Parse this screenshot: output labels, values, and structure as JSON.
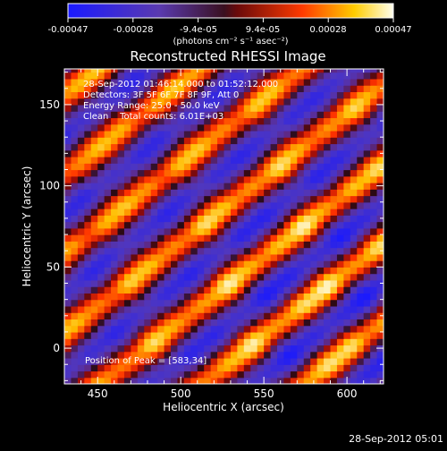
{
  "colorbar": {
    "ticks": [
      "-0.00047",
      "-0.00028",
      "-9.4e-05",
      "9.4e-05",
      "0.00028",
      "0.00047"
    ],
    "units": "(photons cm⁻² s⁻¹ asec⁻²)"
  },
  "chart_data": {
    "type": "heatmap",
    "title": "Reconstructed RHESSI Image",
    "xlabel": "Heliocentric X (arcsec)",
    "ylabel": "Heliocentric Y (arcsec)",
    "xlim": [
      430,
      622
    ],
    "ylim": [
      -22,
      172
    ],
    "xticks": [
      450,
      500,
      550,
      600
    ],
    "yticks": [
      0,
      50,
      100,
      150
    ],
    "zlim": [
      -0.00047,
      0.00047
    ],
    "colormap": "rainbow-like: blue-purple (low) to red-yellow-white (high)",
    "annotations": [
      "28-Sep-2012 01:46:14.000 to 01:52:12.000",
      "Detectors: 3F 5F 6F 7F 8F 9F, Att 0",
      "Energy Range: 25.0 - 50.0 keV",
      "Clean    Total counts: 6.01E+03"
    ],
    "peak_label": "Position of Peak = [583,34]",
    "peak": [
      583,
      34
    ],
    "pattern": "diagonal stripes oriented from lower-left to upper-right"
  },
  "footer_timestamp": "28-Sep-2012 05:01"
}
